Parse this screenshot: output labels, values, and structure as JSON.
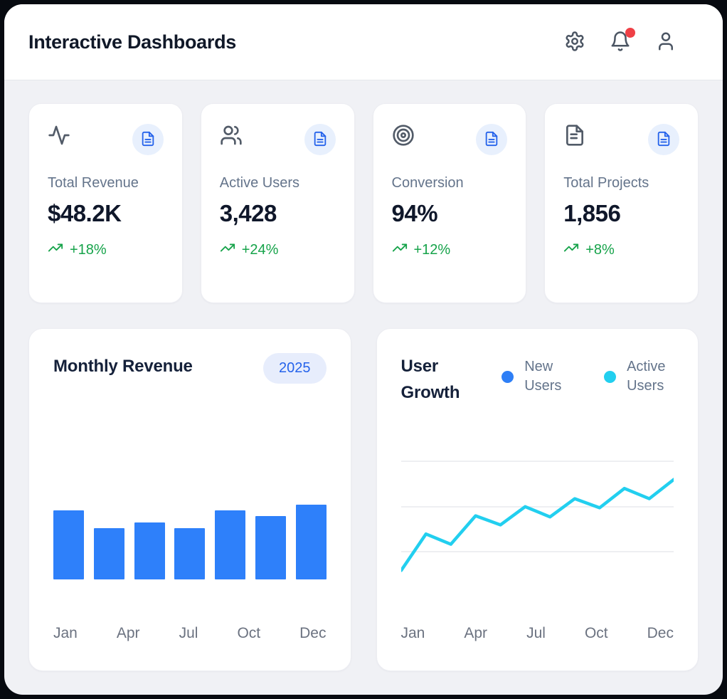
{
  "header": {
    "title": "Interactive Dashboards",
    "actions": [
      {
        "icon": "settings-icon"
      },
      {
        "icon": "bell-icon",
        "has_notification": true
      },
      {
        "icon": "user-icon"
      }
    ]
  },
  "colors": {
    "accent_blue": "#2563EB",
    "bar_blue": "#2E80FA",
    "line_cyan": "#22CFEF",
    "legend_blue_dot": "#2E7FF6",
    "positive_green": "#16A34A",
    "notification_red": "#EF4046",
    "icon_badge_bg": "#E8F0FD",
    "year_badge_bg": "#E7EDFC",
    "page_bg": "#F0F1F5",
    "gridline": "#E8EAEE"
  },
  "stats": [
    {
      "icon": "activity-icon",
      "label": "Total Revenue",
      "value": "$48.2K",
      "change": "+18%"
    },
    {
      "icon": "users-icon",
      "label": "Active Users",
      "value": "3,428",
      "change": "+24%"
    },
    {
      "icon": "target-icon",
      "label": "Conversion",
      "value": "94%",
      "change": "+12%"
    },
    {
      "icon": "file-text-icon",
      "label": "Total Projects",
      "value": "1,856",
      "change": "+8%"
    }
  ],
  "chart_data": [
    {
      "type": "bar",
      "title": "Monthly Revenue",
      "badge": "2025",
      "categories_shown": [
        "Jan",
        "Apr",
        "Jul",
        "Oct",
        "Dec"
      ],
      "values": [
        92,
        69,
        76,
        69,
        92,
        85,
        100
      ],
      "ylim": [
        0,
        100
      ],
      "value_axis_labels": "none shown (values estimated from bar heights, % of max)",
      "color": "#2E80FA",
      "grid": false
    },
    {
      "type": "line",
      "title": "User Growth",
      "categories_shown": [
        "Jan",
        "Apr",
        "Jul",
        "Oct",
        "Dec"
      ],
      "x": [
        1,
        2,
        3,
        4,
        5,
        6,
        7,
        8,
        9,
        10,
        11,
        12
      ],
      "legend": [
        {
          "label": "New Users",
          "color": "#2E7FF6"
        },
        {
          "label": "Active Users",
          "color": "#22CFEF"
        }
      ],
      "legend_position": "top-right",
      "series": [
        {
          "name": "Active Users",
          "color": "#22CFEF",
          "values": [
            6,
            38,
            29,
            54,
            46,
            62,
            53,
            69,
            61,
            78,
            69,
            86
          ]
        }
      ],
      "ylim": [
        0,
        100
      ],
      "value_axis_labels": "none shown (values estimated from gridlines)",
      "grid": "3 horizontal gridlines"
    }
  ]
}
